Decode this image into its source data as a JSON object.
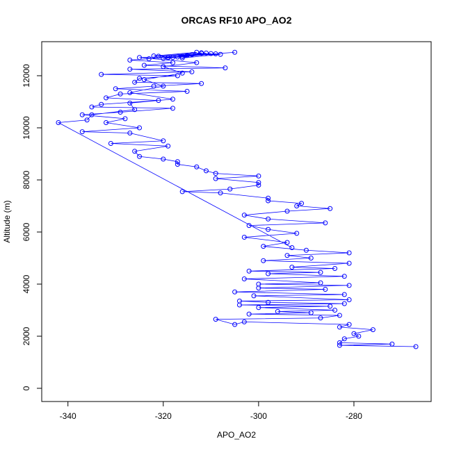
{
  "chart_data": {
    "type": "line",
    "title": "ORCAS RF10 APO_AO2",
    "x_label": "APO_AO2",
    "y_label": "Altitude (m)",
    "color": "#0000ff",
    "markers": true,
    "x": [
      -267,
      -283,
      -272,
      -283,
      -282,
      -279,
      -280,
      -276,
      -283,
      -281,
      -303,
      -305,
      -309,
      -287,
      -283,
      -302,
      -289,
      -296,
      -284,
      -300,
      -285,
      -304,
      -282,
      -298,
      -304,
      -281,
      -301,
      -282,
      -305,
      -286,
      -300,
      -281,
      -300,
      -287,
      -303,
      -282,
      -298,
      -287,
      -302,
      -284,
      -293,
      -281,
      -299,
      -289,
      -294,
      -281,
      -290,
      -299,
      -294,
      -303,
      -292,
      -298,
      -302,
      -286,
      -298,
      -303,
      -294,
      -285,
      -292,
      -291,
      -298,
      -298,
      -308,
      -316,
      -306,
      -300,
      -300,
      -309,
      -300,
      -309,
      -311,
      -313,
      -317,
      -317,
      -320,
      -325,
      -326,
      -319,
      -331,
      -320,
      -327,
      -337,
      -325,
      -332,
      -328,
      -337,
      -329,
      -318,
      -335,
      -333,
      -321,
      -332,
      -329,
      -315,
      -330,
      -322,
      -312,
      -326,
      -325,
      -317,
      -333,
      -314,
      -327,
      -307,
      -324,
      -318,
      -327,
      -323,
      -305,
      -319,
      -310,
      -321,
      -312,
      -316,
      -308,
      -322,
      -313,
      -318,
      -309,
      -320,
      -315,
      -311,
      -317,
      -314,
      -319,
      -312,
      -316,
      -325,
      -313,
      -320,
      -316,
      -324,
      -320,
      -327,
      -318,
      -327,
      -326,
      -335,
      -336,
      -342,
      -293
    ],
    "values": [
      1600,
      1650,
      1700,
      1750,
      1900,
      2000,
      2100,
      2250,
      2350,
      2450,
      2550,
      2450,
      2650,
      2700,
      2800,
      2850,
      2900,
      2950,
      3000,
      3100,
      3150,
      3200,
      3250,
      3300,
      3350,
      3400,
      3550,
      3600,
      3700,
      3800,
      3850,
      3950,
      4000,
      4050,
      4200,
      4300,
      4400,
      4450,
      4500,
      4600,
      4650,
      4800,
      4900,
      5000,
      5100,
      5200,
      5300,
      5450,
      5600,
      5800,
      5950,
      6100,
      6250,
      6350,
      6500,
      6650,
      6800,
      6900,
      7000,
      7100,
      7200,
      7300,
      7500,
      7550,
      7650,
      7800,
      7900,
      8050,
      8150,
      8250,
      8350,
      8500,
      8600,
      8700,
      8800,
      8900,
      9100,
      9300,
      9400,
      9500,
      9800,
      9850,
      10000,
      10200,
      10350,
      10500,
      10600,
      10750,
      10800,
      10900,
      11050,
      11150,
      11300,
      11400,
      11500,
      11600,
      11700,
      11750,
      11900,
      12000,
      12050,
      12150,
      12250,
      12300,
      12400,
      12500,
      12600,
      12650,
      12900,
      12700,
      12850,
      12750,
      12880,
      12680,
      12820,
      12760,
      12900,
      12700,
      12840,
      12660,
      12780,
      12870,
      12720,
      12810,
      12690,
      12860,
      12740,
      12700,
      12500,
      12350,
      12100,
      11850,
      11600,
      11350,
      11100,
      10950,
      10700,
      10500,
      10300,
      10200,
      5400
    ],
    "xlim": [
      -345.5,
      -263.8
    ],
    "ylim": [
      -507,
      13307
    ],
    "xticks": [
      -340,
      -320,
      -300,
      -280
    ],
    "yticks": [
      0,
      2000,
      4000,
      6000,
      8000,
      10000,
      12000
    ]
  }
}
